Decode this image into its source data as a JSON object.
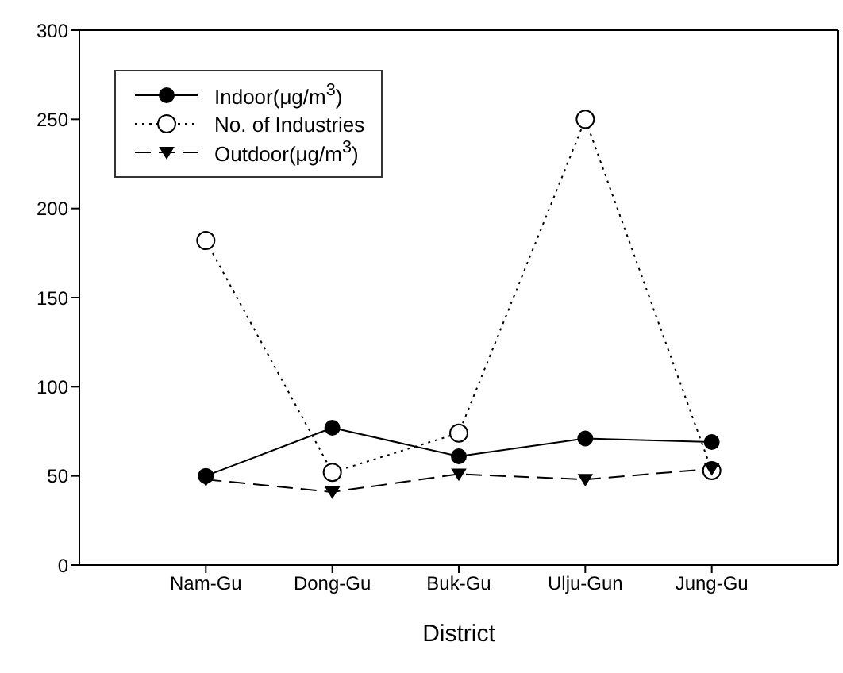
{
  "chart_data": {
    "type": "line",
    "xlabel": "District",
    "categories": [
      "Nam-Gu",
      "Dong-Gu",
      "Buk-Gu",
      "Ulju-Gun",
      "Jung-Gu"
    ],
    "series": [
      {
        "name": "Indoor(μg/m$^{3}$)",
        "color": "#000000",
        "marker": "circle",
        "line_style": "solid",
        "values": [
          50,
          77,
          61,
          71,
          69
        ]
      },
      {
        "name": "No. of Industries",
        "color": "#000000",
        "marker": "circle",
        "line_style": "dotted",
        "values": [
          182,
          52,
          74,
          250,
          53
        ]
      },
      {
        "name": "Outdoor(μg/m$^{3}$)",
        "color": "#000000",
        "marker": "triangle",
        "line_style": "dashed",
        "values": [
          48,
          41,
          51,
          48,
          54
        ]
      }
    ],
    "ylim": [
      0,
      300
    ],
    "yticks": [
      0,
      50,
      100,
      150,
      200,
      250,
      300
    ],
    "grid": false,
    "legend": "top left"
  }
}
